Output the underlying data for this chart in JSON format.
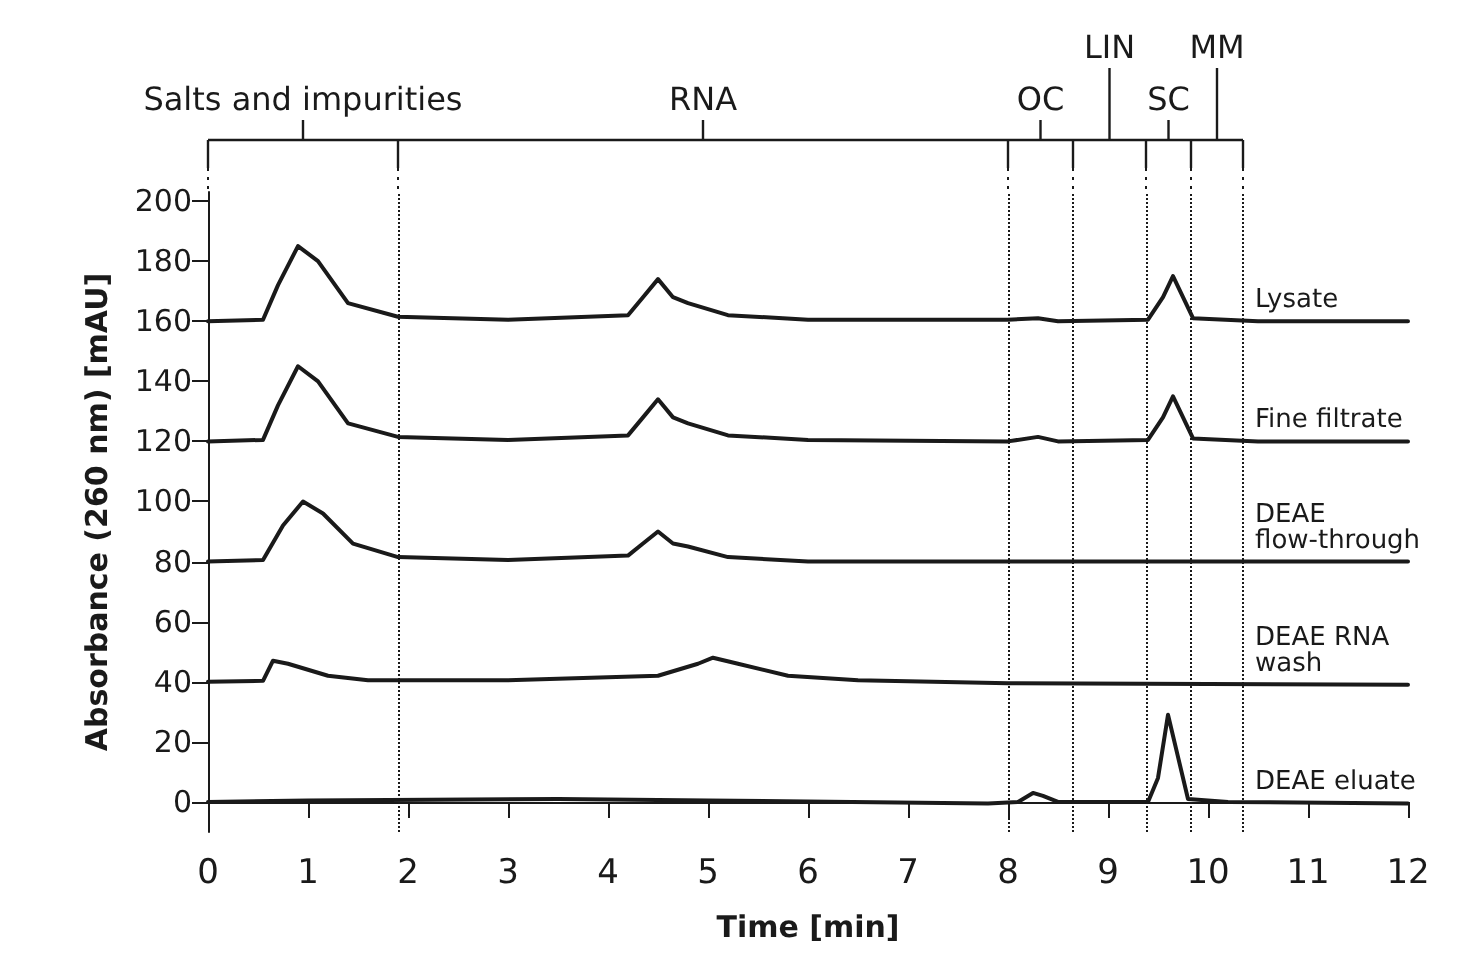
{
  "chart_data": {
    "type": "line",
    "xlabel": "Time [min]",
    "ylabel": "Absorbance (260 nm) [mAU]",
    "xlim": [
      0,
      12
    ],
    "xticks": [
      0,
      1,
      2,
      3,
      4,
      5,
      6,
      7,
      8,
      9,
      10,
      11,
      12
    ],
    "ylim": [
      -10,
      203
    ],
    "yticks": [
      0,
      20,
      40,
      60,
      80,
      100,
      120,
      140,
      160,
      180,
      200
    ],
    "grid": false,
    "legend": false,
    "marker": "none",
    "line_style": "solid",
    "series": [
      {
        "name": "Lysate",
        "color": "#1a1a1a",
        "x": [
          0,
          0.55,
          0.7,
          0.9,
          1.1,
          1.4,
          1.9,
          3,
          4.2,
          4.35,
          4.5,
          4.65,
          4.8,
          5.2,
          6,
          8,
          8.3,
          8.5,
          9.4,
          9.55,
          9.65,
          9.75,
          9.85,
          10.5,
          12
        ],
        "values": [
          160,
          160.5,
          172,
          185,
          180,
          166,
          161.5,
          160.5,
          162,
          168,
          174,
          168,
          166,
          162,
          160.5,
          160.5,
          161,
          160,
          160.5,
          168,
          175,
          168,
          161,
          160,
          160
        ]
      },
      {
        "name": "Fine filtrate",
        "color": "#1a1a1a",
        "x": [
          0,
          0.55,
          0.7,
          0.9,
          1.1,
          1.4,
          1.9,
          3,
          4.2,
          4.35,
          4.5,
          4.65,
          4.8,
          5.2,
          6,
          8,
          8.3,
          8.5,
          9.4,
          9.55,
          9.65,
          9.75,
          9.85,
          10.5,
          12
        ],
        "values": [
          120,
          120.5,
          132,
          145,
          140,
          126,
          121.5,
          120.5,
          122,
          128,
          134,
          128,
          126,
          122,
          120.5,
          120,
          121.5,
          120,
          120.5,
          128,
          135,
          128,
          121,
          120,
          120
        ]
      },
      {
        "name": "DEAE flow-through",
        "color": "#1a1a1a",
        "x": [
          0,
          0.55,
          0.75,
          0.95,
          1.15,
          1.45,
          1.9,
          3,
          4.2,
          4.35,
          4.5,
          4.65,
          4.8,
          5.2,
          6,
          8,
          12
        ],
        "values": [
          80,
          80.5,
          92,
          100,
          96,
          86,
          81.5,
          80.5,
          82,
          86,
          90,
          86,
          85,
          81.5,
          80,
          80,
          80
        ]
      },
      {
        "name": "DEAE RNA wash",
        "color": "#1a1a1a",
        "x": [
          0,
          0.55,
          0.65,
          0.8,
          1.2,
          1.6,
          3,
          4.5,
          4.9,
          5.05,
          5.3,
          5.8,
          6.5,
          8,
          12
        ],
        "values": [
          40,
          40.3,
          47,
          46,
          42,
          40.5,
          40.5,
          42,
          46,
          48,
          46,
          42,
          40.5,
          39.5,
          39
        ]
      },
      {
        "name": "DEAE eluate",
        "color": "#1a1a1a",
        "x": [
          0,
          1,
          3.5,
          5,
          7.8,
          8.1,
          8.25,
          8.35,
          8.5,
          9.4,
          9.5,
          9.6,
          9.7,
          9.8,
          10.2,
          12
        ],
        "values": [
          0,
          0.5,
          1,
          0.5,
          -0.5,
          0,
          3,
          2,
          0,
          0,
          8,
          29,
          15,
          1,
          0,
          -0.5
        ]
      }
    ],
    "ref_lines": [
      {
        "axis": "x",
        "value": 1.9,
        "line_style": "dotted"
      },
      {
        "axis": "x",
        "value": 8.0,
        "line_style": "dotted"
      },
      {
        "axis": "x",
        "value": 8.65,
        "line_style": "dotted"
      },
      {
        "axis": "x",
        "value": 9.38,
        "line_style": "dotted"
      },
      {
        "axis": "x",
        "value": 9.83,
        "line_style": "dotted"
      },
      {
        "axis": "x",
        "value": 10.35,
        "line_style": "dotted"
      }
    ],
    "annotations": [
      "Salts and impurities",
      "RNA",
      "OC",
      "LIN",
      "SC",
      "MM"
    ]
  }
}
